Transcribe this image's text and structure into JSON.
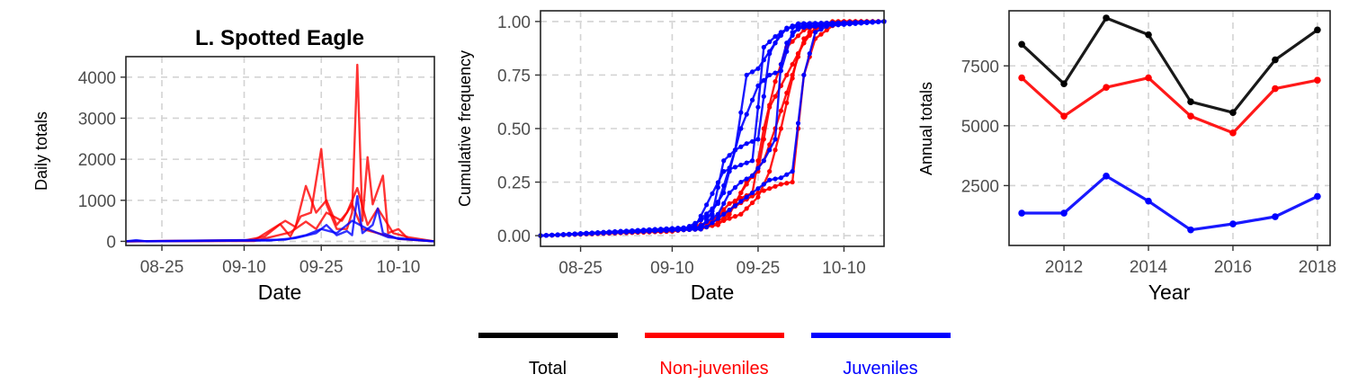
{
  "chart_data": [
    {
      "type": "line",
      "title": "L. Spotted Eagle",
      "xlabel": "Date",
      "ylabel": "Daily totals",
      "x_ticks": [
        "08-25",
        "09-10",
        "09-25",
        "10-10"
      ],
      "y_ticks": [
        0,
        1000,
        2000,
        3000,
        4000
      ],
      "xlim": [
        "08-18",
        "10-17"
      ],
      "ylim": [
        -100,
        4500
      ],
      "series": [
        {
          "group": "Non-juveniles",
          "color": "#ff0000",
          "points": [
            [
              "08-18",
              0
            ],
            [
              "09-10",
              20
            ],
            [
              "09-14",
              120
            ],
            [
              "09-17",
              420
            ],
            [
              "09-19",
              120
            ],
            [
              "09-21",
              610
            ],
            [
              "09-23",
              700
            ],
            [
              "09-25",
              2250
            ],
            [
              "09-26",
              900
            ],
            [
              "09-28",
              300
            ],
            [
              "09-30",
              300
            ],
            [
              "10-01",
              700
            ],
            [
              "10-02",
              4300
            ],
            [
              "10-03",
              500
            ],
            [
              "10-04",
              2050
            ],
            [
              "10-05",
              900
            ],
            [
              "10-07",
              1600
            ],
            [
              "10-08",
              200
            ],
            [
              "10-10",
              300
            ],
            [
              "10-12",
              50
            ],
            [
              "10-17",
              0
            ]
          ]
        },
        {
          "group": "Non-juveniles",
          "color": "#ff0000",
          "points": [
            [
              "08-18",
              0
            ],
            [
              "09-12",
              30
            ],
            [
              "09-18",
              500
            ],
            [
              "09-20",
              350
            ],
            [
              "09-22",
              1350
            ],
            [
              "09-24",
              700
            ],
            [
              "09-26",
              1000
            ],
            [
              "09-28",
              400
            ],
            [
              "09-30",
              700
            ],
            [
              "10-02",
              1300
            ],
            [
              "10-04",
              400
            ],
            [
              "10-06",
              800
            ],
            [
              "10-09",
              200
            ],
            [
              "10-12",
              100
            ],
            [
              "10-17",
              0
            ]
          ]
        },
        {
          "group": "Non-juveniles",
          "color": "#ff0000",
          "points": [
            [
              "08-18",
              0
            ],
            [
              "09-12",
              10
            ],
            [
              "09-19",
              220
            ],
            [
              "09-22",
              480
            ],
            [
              "09-24",
              300
            ],
            [
              "09-26",
              700
            ],
            [
              "09-29",
              500
            ],
            [
              "10-01",
              900
            ],
            [
              "10-03",
              300
            ],
            [
              "10-06",
              200
            ],
            [
              "10-10",
              60
            ],
            [
              "10-17",
              0
            ]
          ]
        },
        {
          "group": "Juveniles",
          "color": "#0000ff",
          "points": [
            [
              "08-18",
              0
            ],
            [
              "08-20",
              30
            ],
            [
              "08-22",
              0
            ],
            [
              "09-15",
              20
            ],
            [
              "09-20",
              80
            ],
            [
              "09-24",
              200
            ],
            [
              "09-26",
              400
            ],
            [
              "09-28",
              150
            ],
            [
              "09-30",
              250
            ],
            [
              "10-01",
              150
            ],
            [
              "10-02",
              1100
            ],
            [
              "10-03",
              200
            ],
            [
              "10-05",
              400
            ],
            [
              "10-06",
              800
            ],
            [
              "10-07",
              200
            ],
            [
              "10-10",
              60
            ],
            [
              "10-17",
              0
            ]
          ]
        },
        {
          "group": "Juveniles",
          "color": "#0000ff",
          "points": [
            [
              "08-18",
              0
            ],
            [
              "09-18",
              40
            ],
            [
              "09-22",
              150
            ],
            [
              "09-25",
              300
            ],
            [
              "09-28",
              200
            ],
            [
              "10-01",
              500
            ],
            [
              "10-04",
              300
            ],
            [
              "10-08",
              100
            ],
            [
              "10-17",
              0
            ]
          ]
        }
      ]
    },
    {
      "type": "line",
      "title": "",
      "xlabel": "Date",
      "ylabel": "Cumulative frequency",
      "x_ticks": [
        "08-25",
        "09-10",
        "09-25",
        "10-10"
      ],
      "y_ticks": [
        "0.00",
        "0.25",
        "0.50",
        "0.75",
        "1.00"
      ],
      "xlim": [
        "08-18",
        "10-17"
      ],
      "ylim": [
        -0.05,
        1.05
      ],
      "markers": true,
      "series": [
        {
          "group": "Non-juveniles",
          "color": "#ff0000",
          "points": [
            [
              "08-18",
              0
            ],
            [
              "09-10",
              0.02
            ],
            [
              "09-18",
              0.05
            ],
            [
              "09-20",
              0.1
            ],
            [
              "09-22",
              0.2
            ],
            [
              "09-24",
              0.28
            ],
            [
              "09-26",
              0.35
            ],
            [
              "09-28",
              0.5
            ],
            [
              "10-01",
              0.75
            ],
            [
              "10-03",
              0.92
            ],
            [
              "10-06",
              0.98
            ],
            [
              "10-10",
              1.0
            ],
            [
              "10-17",
              1.0
            ]
          ]
        },
        {
          "group": "Non-juveniles",
          "color": "#ff0000",
          "points": [
            [
              "08-18",
              0
            ],
            [
              "09-12",
              0.03
            ],
            [
              "09-19",
              0.08
            ],
            [
              "09-21",
              0.15
            ],
            [
              "09-23",
              0.25
            ],
            [
              "09-25",
              0.3
            ],
            [
              "09-27",
              0.6
            ],
            [
              "09-29",
              0.7
            ],
            [
              "10-01",
              0.8
            ],
            [
              "10-03",
              0.9
            ],
            [
              "10-05",
              0.97
            ],
            [
              "10-09",
              1.0
            ],
            [
              "10-17",
              1.0
            ]
          ]
        },
        {
          "group": "Non-juveniles",
          "color": "#ff0000",
          "points": [
            [
              "08-18",
              0
            ],
            [
              "09-14",
              0.03
            ],
            [
              "09-20",
              0.12
            ],
            [
              "09-23",
              0.17
            ],
            [
              "09-25",
              0.2
            ],
            [
              "09-27",
              0.22
            ],
            [
              "09-29",
              0.24
            ],
            [
              "10-01",
              0.25
            ],
            [
              "10-02",
              0.5
            ],
            [
              "10-03",
              0.75
            ],
            [
              "10-05",
              0.92
            ],
            [
              "10-08",
              0.98
            ],
            [
              "10-12",
              1.0
            ],
            [
              "10-17",
              1.0
            ]
          ]
        },
        {
          "group": "Non-juveniles",
          "color": "#ff0000",
          "points": [
            [
              "08-18",
              0
            ],
            [
              "09-15",
              0.03
            ],
            [
              "09-22",
              0.1
            ],
            [
              "09-25",
              0.18
            ],
            [
              "09-27",
              0.3
            ],
            [
              "09-29",
              0.5
            ],
            [
              "09-30",
              0.62
            ],
            [
              "10-02",
              0.85
            ],
            [
              "10-04",
              0.95
            ],
            [
              "10-07",
              0.99
            ],
            [
              "10-17",
              1.0
            ]
          ]
        },
        {
          "group": "Non-juveniles",
          "color": "#ff0000",
          "points": [
            [
              "08-18",
              0
            ],
            [
              "09-16",
              0.04
            ],
            [
              "09-20",
              0.15
            ],
            [
              "09-24",
              0.2
            ],
            [
              "09-26",
              0.5
            ],
            [
              "09-28",
              0.72
            ],
            [
              "09-30",
              0.88
            ],
            [
              "10-03",
              0.96
            ],
            [
              "10-08",
              1.0
            ],
            [
              "10-17",
              1.0
            ]
          ]
        },
        {
          "group": "Juveniles",
          "color": "#0000ff",
          "points": [
            [
              "08-18",
              0
            ],
            [
              "09-12",
              0.03
            ],
            [
              "09-17",
              0.1
            ],
            [
              "09-19",
              0.35
            ],
            [
              "09-21",
              0.4
            ],
            [
              "09-23",
              0.43
            ],
            [
              "09-25",
              0.45
            ],
            [
              "09-26",
              0.65
            ],
            [
              "09-27",
              0.85
            ],
            [
              "09-29",
              0.95
            ],
            [
              "10-02",
              0.99
            ],
            [
              "10-17",
              1.0
            ]
          ]
        },
        {
          "group": "Juveniles",
          "color": "#0000ff",
          "points": [
            [
              "08-18",
              0
            ],
            [
              "09-14",
              0.04
            ],
            [
              "09-19",
              0.3
            ],
            [
              "09-21",
              0.32
            ],
            [
              "09-24",
              0.35
            ],
            [
              "09-25",
              0.6
            ],
            [
              "09-26",
              0.88
            ],
            [
              "09-28",
              0.93
            ],
            [
              "10-01",
              0.98
            ],
            [
              "10-17",
              1.0
            ]
          ]
        },
        {
          "group": "Juveniles",
          "color": "#0000ff",
          "points": [
            [
              "08-18",
              0
            ],
            [
              "09-14",
              0.03
            ],
            [
              "09-18",
              0.1
            ],
            [
              "09-20",
              0.2
            ],
            [
              "09-22",
              0.25
            ],
            [
              "09-24",
              0.28
            ],
            [
              "09-26",
              0.35
            ],
            [
              "09-28",
              0.45
            ],
            [
              "09-29",
              0.8
            ],
            [
              "09-30",
              0.9
            ],
            [
              "10-02",
              0.97
            ],
            [
              "10-17",
              1.0
            ]
          ]
        },
        {
          "group": "Juveniles",
          "color": "#0000ff",
          "points": [
            [
              "08-18",
              0
            ],
            [
              "09-16",
              0.04
            ],
            [
              "09-20",
              0.12
            ],
            [
              "09-23",
              0.18
            ],
            [
              "09-25",
              0.22
            ],
            [
              "09-27",
              0.26
            ],
            [
              "09-29",
              0.27
            ],
            [
              "10-01",
              0.3
            ],
            [
              "10-03",
              0.75
            ],
            [
              "10-05",
              0.95
            ],
            [
              "10-08",
              0.99
            ],
            [
              "10-17",
              1.0
            ]
          ]
        },
        {
          "group": "Juveniles",
          "color": "#0000ff",
          "points": [
            [
              "08-18",
              0
            ],
            [
              "09-13",
              0.03
            ],
            [
              "09-18",
              0.15
            ],
            [
              "09-21",
              0.4
            ],
            [
              "09-23",
              0.75
            ],
            [
              "09-25",
              0.78
            ],
            [
              "09-26",
              0.82
            ],
            [
              "09-28",
              0.9
            ],
            [
              "09-30",
              0.97
            ],
            [
              "10-17",
              1.0
            ]
          ]
        },
        {
          "group": "Juveniles",
          "color": "#0000ff",
          "points": [
            [
              "08-18",
              0
            ],
            [
              "09-15",
              0.03
            ],
            [
              "09-19",
              0.2
            ],
            [
              "09-22",
              0.5
            ],
            [
              "09-25",
              0.7
            ],
            [
              "09-27",
              0.75
            ],
            [
              "09-29",
              0.77
            ],
            [
              "10-01",
              0.95
            ],
            [
              "10-04",
              0.99
            ],
            [
              "10-17",
              1.0
            ]
          ]
        }
      ]
    },
    {
      "type": "line",
      "title": "",
      "xlabel": "Year",
      "ylabel": "Annual totals",
      "x_ticks": [
        2012,
        2014,
        2016,
        2018
      ],
      "y_ticks": [
        2500,
        5000,
        7500
      ],
      "xlim": [
        2010.7,
        2018.3
      ],
      "ylim": [
        0,
        9800
      ],
      "markers": true,
      "series": [
        {
          "name": "Total",
          "color": "#000000",
          "x": [
            2011,
            2012,
            2013,
            2014,
            2015,
            2016,
            2017,
            2018
          ],
          "values": [
            8400,
            6750,
            9500,
            8800,
            6000,
            5550,
            7750,
            9000
          ]
        },
        {
          "name": "Non-juveniles",
          "color": "#ff0000",
          "x": [
            2011,
            2012,
            2013,
            2014,
            2015,
            2016,
            2017,
            2018
          ],
          "values": [
            7000,
            5400,
            6600,
            7000,
            5400,
            4700,
            6550,
            6900
          ]
        },
        {
          "name": "Juveniles",
          "color": "#0000ff",
          "x": [
            2011,
            2012,
            2013,
            2014,
            2015,
            2016,
            2017,
            2018
          ],
          "values": [
            1350,
            1350,
            2900,
            1850,
            650,
            900,
            1200,
            2050
          ]
        }
      ]
    }
  ],
  "legend": {
    "placement": "bottom",
    "items": [
      {
        "label": "Total",
        "color": "#000000"
      },
      {
        "label": "Non-juveniles",
        "color": "#ff0000"
      },
      {
        "label": "Juveniles",
        "color": "#0000ff"
      }
    ]
  }
}
